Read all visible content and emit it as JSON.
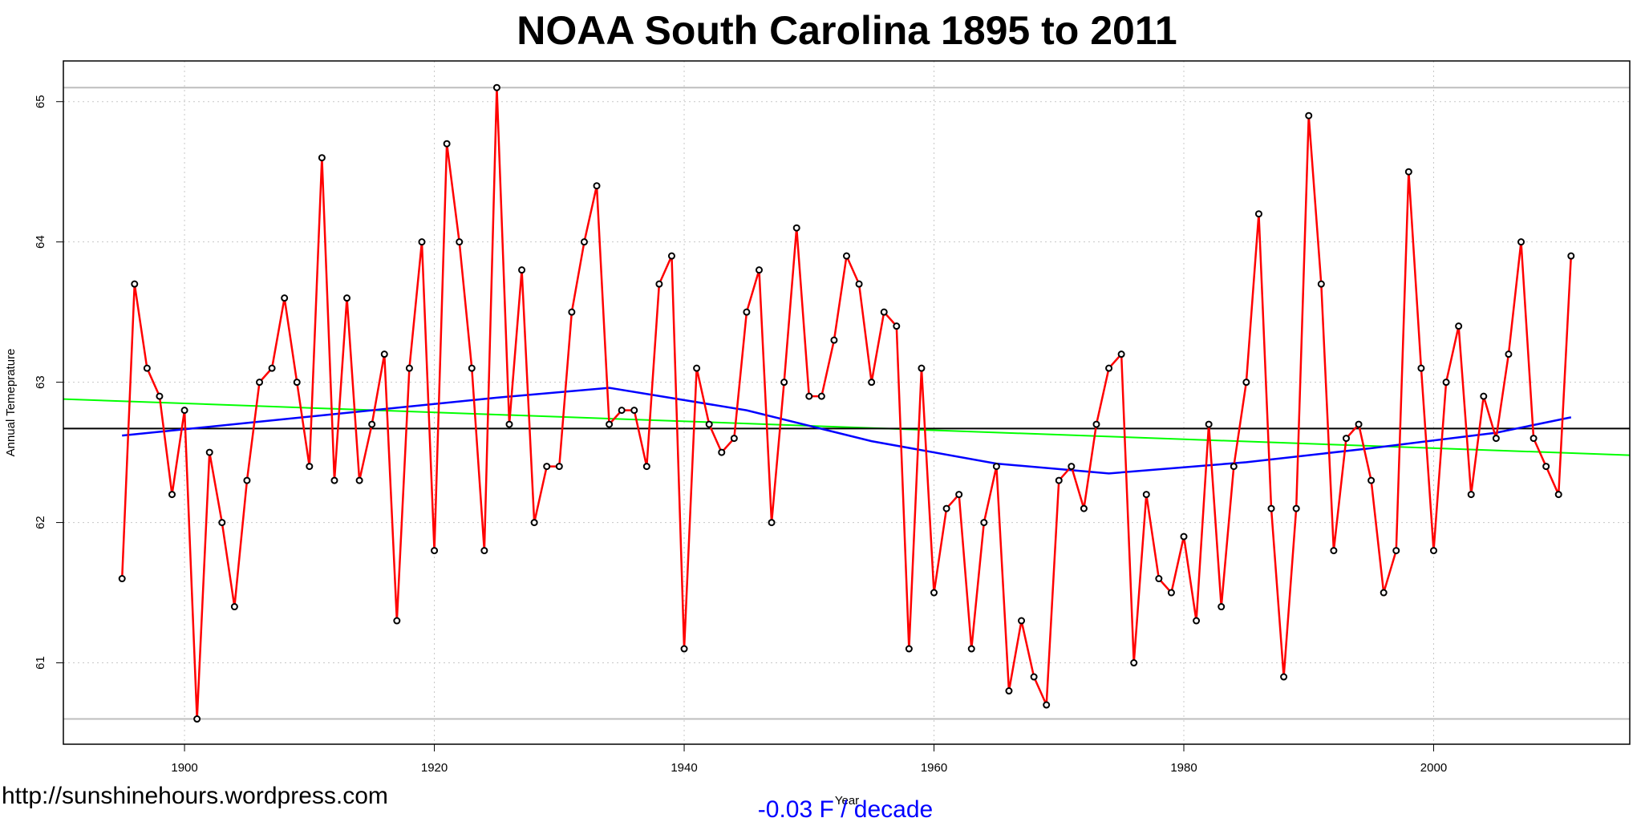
{
  "chart_data": {
    "type": "line",
    "title": "NOAA  South Carolina 1895 to 2011",
    "xlabel": "Year",
    "ylabel": "Annual Temeprature",
    "source": "http://sunshinehours.wordpress.com",
    "annotation": "-0.03 F / decade",
    "xlim": [
      1890.3,
      2015.7
    ],
    "ylim": [
      60.42,
      65.29
    ],
    "xticks": [
      1900,
      1920,
      1940,
      1960,
      1980,
      2000
    ],
    "yticks": [
      61,
      62,
      63,
      64,
      65
    ],
    "grid": true,
    "x": [
      1895,
      1896,
      1897,
      1898,
      1899,
      1900,
      1901,
      1902,
      1903,
      1904,
      1905,
      1906,
      1907,
      1908,
      1909,
      1910,
      1911,
      1912,
      1913,
      1914,
      1915,
      1916,
      1917,
      1918,
      1919,
      1920,
      1921,
      1922,
      1923,
      1924,
      1925,
      1926,
      1927,
      1928,
      1929,
      1930,
      1931,
      1932,
      1933,
      1934,
      1935,
      1936,
      1937,
      1938,
      1939,
      1940,
      1941,
      1942,
      1943,
      1944,
      1945,
      1946,
      1947,
      1948,
      1949,
      1950,
      1951,
      1952,
      1953,
      1954,
      1955,
      1956,
      1957,
      1958,
      1959,
      1960,
      1961,
      1962,
      1963,
      1964,
      1965,
      1966,
      1967,
      1968,
      1969,
      1970,
      1971,
      1972,
      1973,
      1974,
      1975,
      1976,
      1977,
      1978,
      1979,
      1980,
      1981,
      1982,
      1983,
      1984,
      1985,
      1986,
      1987,
      1988,
      1989,
      1990,
      1991,
      1992,
      1993,
      1994,
      1995,
      1996,
      1997,
      1998,
      1999,
      2000,
      2001,
      2002,
      2003,
      2004,
      2005,
      2006,
      2007,
      2008,
      2009,
      2010,
      2011
    ],
    "series": [
      {
        "color": "#ff0000",
        "markers": true,
        "values": [
          61.6,
          63.7,
          63.1,
          62.9,
          62.2,
          62.8,
          60.6,
          62.5,
          62.0,
          61.4,
          62.3,
          63.0,
          63.1,
          63.6,
          63.0,
          62.4,
          64.6,
          62.3,
          63.6,
          62.3,
          62.7,
          63.2,
          61.3,
          63.1,
          64.0,
          61.8,
          64.7,
          64.0,
          63.1,
          61.8,
          65.1,
          62.7,
          63.8,
          62.0,
          62.4,
          62.4,
          63.5,
          64.0,
          64.4,
          62.7,
          62.8,
          62.8,
          62.4,
          63.7,
          63.9,
          61.1,
          63.1,
          62.7,
          62.5,
          62.6,
          63.5,
          63.8,
          62.0,
          63.0,
          64.1,
          62.9,
          62.9,
          63.3,
          63.9,
          63.7,
          63.0,
          63.5,
          63.4,
          61.1,
          63.1,
          61.5,
          62.1,
          62.2,
          61.1,
          62.0,
          62.4,
          60.8,
          61.3,
          60.9,
          60.7,
          62.3,
          62.4,
          62.1,
          62.7,
          63.1,
          63.2,
          61.0,
          62.2,
          61.6,
          61.5,
          61.9,
          61.3,
          62.7,
          61.4,
          62.4,
          63.0,
          64.2,
          62.1,
          60.9,
          62.1,
          64.9,
          63.7,
          61.8,
          62.6,
          62.7,
          62.3,
          61.5,
          61.8,
          64.5,
          63.1,
          61.8,
          63.0,
          63.4,
          62.2,
          62.9,
          62.6,
          63.2,
          64.0,
          62.6,
          62.4,
          62.2,
          63.9
        ]
      }
    ],
    "smooth": {
      "color": "#0000ff",
      "x": [
        1895,
        1905,
        1915,
        1925,
        1934,
        1945,
        1955,
        1965,
        1974,
        1985,
        1995,
        2005,
        2011
      ],
      "values": [
        62.62,
        62.71,
        62.8,
        62.89,
        62.96,
        62.8,
        62.58,
        62.42,
        62.35,
        62.43,
        62.53,
        62.64,
        62.75
      ]
    },
    "trend": {
      "color": "#00ff00",
      "x": [
        1890.3,
        2015.7
      ],
      "values": [
        62.88,
        62.48
      ]
    },
    "mean_line": {
      "color": "#000000",
      "value": 62.67
    },
    "range_lines": {
      "color": "#bebebe",
      "values": [
        65.1,
        60.6
      ]
    }
  }
}
